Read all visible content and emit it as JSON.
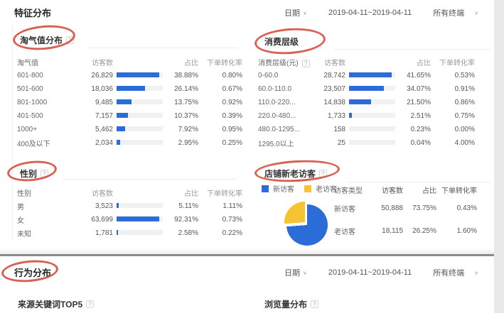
{
  "feature_section": {
    "title": "特征分布",
    "controls": {
      "date_label": "日期",
      "date_range": "2019-04-11~2019-04-11",
      "terminal_label": "所有终端"
    }
  },
  "behavior_section": {
    "title": "行为分布",
    "controls": {
      "date_label": "日期",
      "date_range": "2019-04-11~2019-04-11",
      "terminal_label": "所有终端"
    },
    "keywords_title": "来源关键词TOP5",
    "pageviews_title": "浏览量分布"
  },
  "tables": {
    "taoqi": {
      "title": "淘气值分布",
      "columns": [
        "淘气值",
        "访客数",
        "占比",
        "下单转化率"
      ],
      "rows": [
        {
          "label": "601-800",
          "visitors": "26,829",
          "share": "38.88%",
          "cvr": "0.80%"
        },
        {
          "label": "501-600",
          "visitors": "18,036",
          "share": "26.14%",
          "cvr": "0.67%"
        },
        {
          "label": "801-1000",
          "visitors": "9,485",
          "share": "13.75%",
          "cvr": "0.92%"
        },
        {
          "label": "401-500",
          "visitors": "7,157",
          "share": "10.37%",
          "cvr": "0.39%"
        },
        {
          "label": "1000+",
          "visitors": "5,462",
          "share": "7.92%",
          "cvr": "0.95%"
        },
        {
          "label": "400及以下",
          "visitors": "2,034",
          "share": "2.95%",
          "cvr": "0.25%"
        }
      ]
    },
    "consume": {
      "title": "消费层级",
      "columns": [
        "消费层级(元)",
        "访客数",
        "占比",
        "下单转化率"
      ],
      "rows": [
        {
          "label": "0-60.0",
          "visitors": "28,742",
          "share": "41.65%",
          "cvr": "0.53%"
        },
        {
          "label": "60.0-110.0",
          "visitors": "23,507",
          "share": "34.07%",
          "cvr": "0.91%"
        },
        {
          "label": "110.0-220...",
          "visitors": "14,838",
          "share": "21.50%",
          "cvr": "0.86%"
        },
        {
          "label": "220.0-480...",
          "visitors": "1,733",
          "share": "2.51%",
          "cvr": "0.75%"
        },
        {
          "label": "480.0-1295...",
          "visitors": "158",
          "share": "0.23%",
          "cvr": "0.00%"
        },
        {
          "label": "1295.0以上",
          "visitors": "25",
          "share": "0.04%",
          "cvr": "4.00%"
        }
      ]
    },
    "gender": {
      "title": "性别",
      "columns": [
        "性别",
        "访客数",
        "占比",
        "下单转化率"
      ],
      "rows": [
        {
          "label": "男",
          "visitors": "3,523",
          "share": "5.11%",
          "cvr": "1.11%"
        },
        {
          "label": "女",
          "visitors": "63,699",
          "share": "92.31%",
          "cvr": "0.73%"
        },
        {
          "label": "未知",
          "visitors": "1,781",
          "share": "2.58%",
          "cvr": "0.22%"
        }
      ]
    },
    "visitors": {
      "title": "店铺新老访客",
      "columns": [
        "访客类型",
        "访客数",
        "占比",
        "下单转化率"
      ],
      "legend": [
        {
          "label": "新访客",
          "color": "#2B6CD9"
        },
        {
          "label": "老访客",
          "color": "#F5C432"
        }
      ],
      "rows": [
        {
          "label": "新访客",
          "visitors": "50,888",
          "share": "73.75%",
          "cvr": "0.43%"
        },
        {
          "label": "老访客",
          "visitors": "18,115",
          "share": "26.25%",
          "cvr": "1.60%"
        }
      ],
      "pie": {
        "type": "pie",
        "slices": [
          {
            "label": "新访客",
            "pct": 73.75,
            "color": "#2B6CD9"
          },
          {
            "label": "老访客",
            "pct": 26.25,
            "color": "#F5C432"
          }
        ]
      }
    }
  },
  "colors": {
    "bar_blue": "#2B6CD9",
    "pie_yellow": "#F5C432",
    "annotation_red": "#CE3926",
    "bar_track": "#f1f1f1"
  }
}
